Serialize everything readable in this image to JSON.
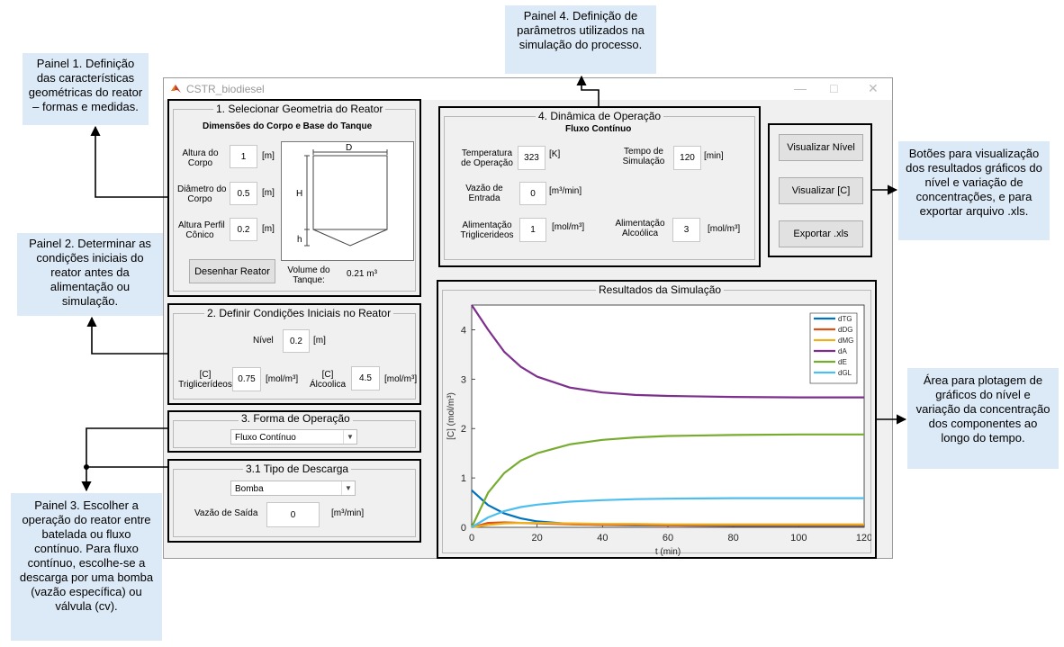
{
  "window": {
    "title": "CSTR_biodiesel"
  },
  "callouts": {
    "c1": "Painel 1. Definição das características geométricas do reator – formas e medidas.",
    "c2": "Painel 2. Determinar as condições iniciais do reator antes da alimentação ou simulação.",
    "c3": "Painel 3. Escolher a operação do reator entre batelada ou fluxo contínuo. Para fluxo contínuo, escolhe-se a descarga por uma bomba (vazão específica) ou válvula (cv).",
    "c4": "Painel 4. Definição de parâmetros utilizados na simulação do processo.",
    "c5": "Botões para visualização dos resultados gráficos do nível e variação de concentrações, e para exportar arquivo .xls.",
    "c6": "Área para plotagem de gráficos do nível e variação da concentração dos componentes ao longo do tempo."
  },
  "panel1": {
    "title": "1. Selecionar Geometria do Reator",
    "subtitle": "Dimensões do Corpo e Base do Tanque",
    "altura_corpo_l1": "Altura do",
    "altura_corpo_l2": "Corpo",
    "altura_corpo_value": "1",
    "altura_corpo_unit": "[m]",
    "diametro_l1": "Diâmetro do",
    "diametro_l2": "Corpo",
    "diametro_value": "0.5",
    "diametro_unit": "[m]",
    "altura_conico_l1": "Altura Perfil",
    "altura_conico_l2": "Cônico",
    "altura_conico_value": "0.2",
    "altura_conico_unit": "[m]",
    "diagram_D": "D",
    "diagram_H": "H",
    "diagram_h": "h",
    "draw_button": "Desenhar Reator",
    "volume_l1": "Volume do",
    "volume_l2": "Tanque:",
    "volume_value": "0.21 m³"
  },
  "panel2": {
    "title": "2. Definir Condições Iniciais no Reator",
    "nivel_label": "Nível",
    "nivel_value": "0.2",
    "nivel_unit": "[m]",
    "tg_l1": "[C]",
    "tg_l2": "Triglicerídeos",
    "tg_value": "0.75",
    "tg_unit": "[mol/m³]",
    "alc_l1": "[C]",
    "alc_l2": "Álcoolica",
    "alc_value": "4.5",
    "alc_unit": "[mol/m³]"
  },
  "panel3": {
    "title": "3. Forma de Operação",
    "selected": "Fluxo Contínuo"
  },
  "panel31": {
    "title": "3.1 Tipo de Descarga",
    "selected": "Bomba",
    "vazao_label": "Vazão de Saída",
    "vazao_value": "0",
    "vazao_unit": "[m³/min]"
  },
  "panel4": {
    "title": "4. Dinâmica de Operação",
    "subtitle": "Fluxo Contínuo",
    "temp_l1": "Temperatura",
    "temp_l2": "de Operação",
    "temp_value": "323",
    "temp_unit": "[K]",
    "tempo_l1": "Tempo de",
    "tempo_l2": "Simulação",
    "tempo_value": "120",
    "tempo_unit": "[min]",
    "vazao_l1": "Vazão de",
    "vazao_l2": "Entrada",
    "vazao_value": "0",
    "vazao_unit": "[m³/min]",
    "alimtg_l1": "Alimentação",
    "alimtg_l2": "Triglicerideos",
    "alimtg_value": "1",
    "alimtg_unit": "[mol/m³]",
    "alimalc_l1": "Alimentação",
    "alimalc_l2": "Alcoólica",
    "alimalc_value": "3",
    "alimalc_unit": "[mol/m³]"
  },
  "buttons": {
    "nivel": "Visualizar Nível",
    "conc": "Visualizar [C]",
    "export": "Exportar .xls"
  },
  "results_title": "Resultados da Simulação",
  "chart_data": {
    "type": "line",
    "title": "",
    "xlabel": "t (min)",
    "ylabel": "[C] (mol/m³)",
    "xlim": [
      0,
      120
    ],
    "ylim": [
      0,
      4.5
    ],
    "xticks": [
      0,
      20,
      40,
      60,
      80,
      100,
      120
    ],
    "yticks": [
      0,
      1,
      2,
      3,
      4
    ],
    "legend_position": "top-right",
    "x": [
      0,
      5,
      10,
      15,
      20,
      30,
      40,
      50,
      60,
      80,
      100,
      120
    ],
    "series": [
      {
        "name": "dTG",
        "color": "#0072bd",
        "values": [
          0.75,
          0.45,
          0.28,
          0.18,
          0.12,
          0.07,
          0.05,
          0.04,
          0.04,
          0.03,
          0.03,
          0.03
        ]
      },
      {
        "name": "dDG",
        "color": "#d95319",
        "values": [
          0,
          0.09,
          0.1,
          0.09,
          0.08,
          0.06,
          0.05,
          0.05,
          0.04,
          0.04,
          0.04,
          0.04
        ]
      },
      {
        "name": "dMG",
        "color": "#edb120",
        "values": [
          0,
          0.05,
          0.08,
          0.09,
          0.09,
          0.08,
          0.07,
          0.07,
          0.06,
          0.06,
          0.06,
          0.06
        ]
      },
      {
        "name": "dA",
        "color": "#7e2f8e",
        "values": [
          4.5,
          4.0,
          3.55,
          3.25,
          3.05,
          2.83,
          2.73,
          2.68,
          2.66,
          2.64,
          2.63,
          2.63
        ]
      },
      {
        "name": "dE",
        "color": "#77ac30",
        "values": [
          0,
          0.7,
          1.1,
          1.35,
          1.5,
          1.68,
          1.77,
          1.82,
          1.85,
          1.87,
          1.88,
          1.88
        ]
      },
      {
        "name": "dGL",
        "color": "#4dbeee",
        "values": [
          0,
          0.2,
          0.33,
          0.41,
          0.46,
          0.52,
          0.55,
          0.57,
          0.58,
          0.59,
          0.59,
          0.59
        ]
      }
    ]
  }
}
